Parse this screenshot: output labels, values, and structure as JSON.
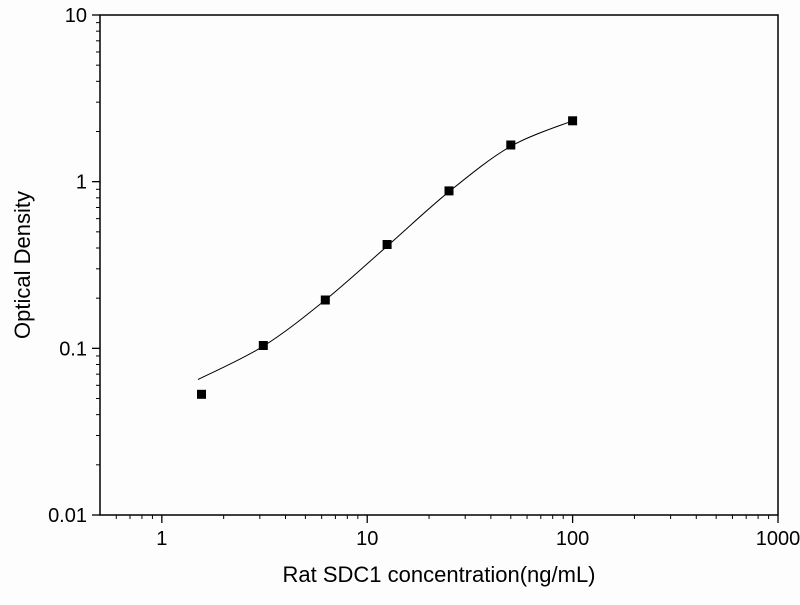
{
  "chart_data": {
    "type": "scatter",
    "title": "",
    "xlabel": "Rat SDC1 concentration(ng/mL)",
    "ylabel": "Optical Density",
    "x_scale": "log",
    "y_scale": "log",
    "xlim": [
      0.5,
      1000
    ],
    "ylim": [
      0.01,
      10
    ],
    "x_ticks": [
      1,
      10,
      100,
      1000
    ],
    "y_ticks": [
      0.01,
      0.1,
      1,
      10
    ],
    "grid": false,
    "legend": false,
    "marker": {
      "shape": "square",
      "color": "#000000",
      "size": 9
    },
    "line_color": "#000000",
    "points": [
      [
        1.56,
        0.053
      ],
      [
        3.12,
        0.104
      ],
      [
        6.25,
        0.195
      ],
      [
        12.5,
        0.42
      ],
      [
        25,
        0.88
      ],
      [
        50,
        1.66
      ],
      [
        100,
        2.32
      ]
    ],
    "fit_curve": [
      [
        1.5,
        0.065
      ],
      [
        3.12,
        0.103
      ],
      [
        6.25,
        0.195
      ],
      [
        12.5,
        0.41
      ],
      [
        25,
        0.87
      ],
      [
        50,
        1.63
      ],
      [
        100,
        2.32
      ]
    ]
  }
}
